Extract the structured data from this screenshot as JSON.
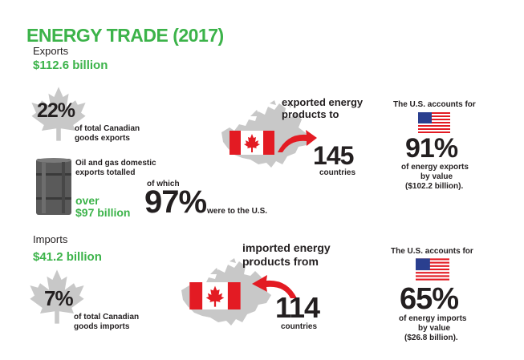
{
  "title": "ENERGY TRADE (2017)",
  "exports": {
    "label": "Exports",
    "amount": "$112.6 billion",
    "share_pct": "22%",
    "share_desc_1": "of total Canadian",
    "share_desc_2": "goods exports",
    "oil_desc_1": "Oil and gas domestic",
    "oil_desc_2": "exports totalled",
    "oil_over": "over",
    "oil_amount": "$97 billion",
    "of_which": "of which",
    "us_pct": "97%",
    "us_text": "were to the U.S.",
    "dest_text_1": "exported energy",
    "dest_text_2": "products to",
    "dest_count": "145",
    "dest_unit": "countries",
    "us_accounts": "The U.S. accounts for",
    "us_value_pct": "91%",
    "us_value_1": "of energy exports",
    "us_value_2": "by value",
    "us_value_3": "($102.2 billion)."
  },
  "imports": {
    "label": "Imports",
    "amount": "$41.2 billion",
    "share_pct": "7%",
    "share_desc_1": "of total Canadian",
    "share_desc_2": "goods imports",
    "dest_text_1": "imported energy",
    "dest_text_2": "products from",
    "dest_count": "114",
    "dest_unit": "countries",
    "us_accounts": "The U.S. accounts for",
    "us_value_pct": "65%",
    "us_value_1": "of energy imports",
    "us_value_2": "by value",
    "us_value_3": "($26.8 billion)."
  },
  "colors": {
    "green": "#3cb34a",
    "red": "#e31b23",
    "gray": "#c8c8c8",
    "dark": "#231f20"
  }
}
